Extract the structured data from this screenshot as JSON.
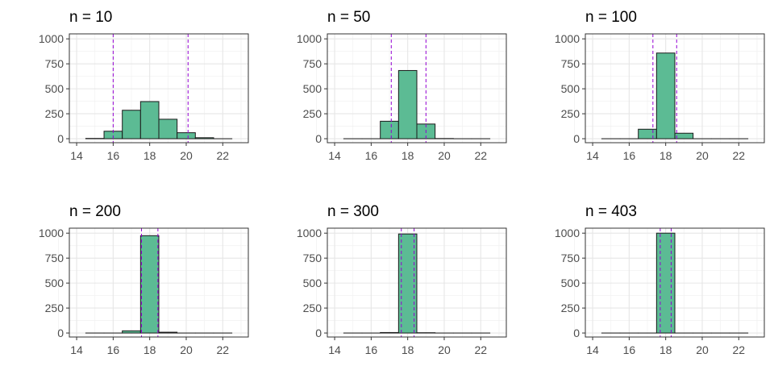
{
  "colors": {
    "bar_fill": "#5cbb94",
    "bar_stroke": "#1a1a1a",
    "grid_major": "#e6e6e6",
    "grid_minor": "#f2f2f2",
    "panel_border": "#333333",
    "vline": "#9400d3"
  },
  "chart_data": [
    {
      "type": "bar",
      "title": "n = 10",
      "xlim": [
        13.6,
        23.4
      ],
      "ylim": [
        -40,
        1050
      ],
      "xticks": [
        14,
        16,
        18,
        20,
        22
      ],
      "yticks": [
        0,
        250,
        500,
        750,
        1000
      ],
      "grid": true,
      "bin_starts": [
        14.5,
        15.5,
        16.5,
        17.5,
        18.5,
        19.5,
        20.5,
        21.5
      ],
      "bin_width": 1,
      "counts": [
        3,
        75,
        285,
        372,
        195,
        60,
        10,
        0
      ],
      "vlines": [
        16.0,
        20.1
      ]
    },
    {
      "type": "bar",
      "title": "n = 50",
      "xlim": [
        13.6,
        23.4
      ],
      "ylim": [
        -40,
        1050
      ],
      "xticks": [
        14,
        16,
        18,
        20,
        22
      ],
      "yticks": [
        0,
        250,
        500,
        750,
        1000
      ],
      "grid": true,
      "bin_starts": [
        14.5,
        15.5,
        16.5,
        17.5,
        18.5,
        19.5,
        20.5,
        21.5
      ],
      "bin_width": 1,
      "counts": [
        0,
        0,
        175,
        683,
        147,
        2,
        0,
        0
      ],
      "vlines": [
        17.1,
        19.0
      ]
    },
    {
      "type": "bar",
      "title": "n = 100",
      "xlim": [
        13.6,
        23.4
      ],
      "ylim": [
        -40,
        1050
      ],
      "xticks": [
        14,
        16,
        18,
        20,
        22
      ],
      "yticks": [
        0,
        250,
        500,
        750,
        1000
      ],
      "grid": true,
      "bin_starts": [
        14.5,
        15.5,
        16.5,
        17.5,
        18.5,
        19.5,
        20.5,
        21.5
      ],
      "bin_width": 1,
      "counts": [
        0,
        0,
        95,
        858,
        55,
        0,
        0,
        0
      ],
      "vlines": [
        17.3,
        18.6
      ]
    },
    {
      "type": "bar",
      "title": "n = 200",
      "xlim": [
        13.6,
        23.4
      ],
      "ylim": [
        -40,
        1050
      ],
      "xticks": [
        14,
        16,
        18,
        20,
        22
      ],
      "yticks": [
        0,
        250,
        500,
        750,
        1000
      ],
      "grid": true,
      "bin_starts": [
        14.5,
        15.5,
        16.5,
        17.5,
        18.5,
        19.5,
        20.5,
        21.5
      ],
      "bin_width": 1,
      "counts": [
        0,
        0,
        22,
        975,
        8,
        0,
        0,
        0
      ],
      "vlines": [
        17.55,
        18.45
      ]
    },
    {
      "type": "bar",
      "title": "n = 300",
      "xlim": [
        13.6,
        23.4
      ],
      "ylim": [
        -40,
        1050
      ],
      "xticks": [
        14,
        16,
        18,
        20,
        22
      ],
      "yticks": [
        0,
        250,
        500,
        750,
        1000
      ],
      "grid": true,
      "bin_starts": [
        14.5,
        15.5,
        16.5,
        17.5,
        18.5,
        19.5,
        20.5,
        21.5
      ],
      "bin_width": 1,
      "counts": [
        0,
        0,
        5,
        992,
        3,
        0,
        0,
        0
      ],
      "vlines": [
        17.65,
        18.35
      ]
    },
    {
      "type": "bar",
      "title": "n = 403",
      "xlim": [
        13.6,
        23.4
      ],
      "ylim": [
        -40,
        1050
      ],
      "xticks": [
        14,
        16,
        18,
        20,
        22
      ],
      "yticks": [
        0,
        250,
        500,
        750,
        1000
      ],
      "grid": true,
      "bin_starts": [
        14.5,
        15.5,
        16.5,
        17.5,
        18.5,
        19.5,
        20.5,
        21.5
      ],
      "bin_width": 1,
      "counts": [
        0,
        0,
        0,
        1000,
        0,
        0,
        0,
        0
      ],
      "vlines": [
        17.7,
        18.3
      ]
    }
  ]
}
